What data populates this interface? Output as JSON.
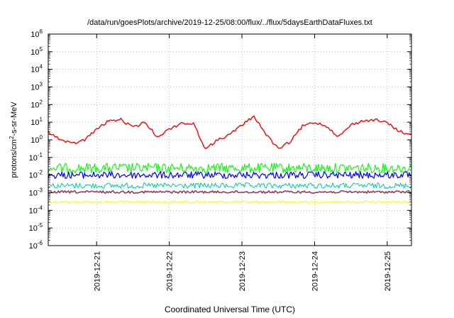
{
  "chart_data": {
    "type": "line",
    "title": "/data/run/goesPlots/archive/2019-12-25/08:00/flux/../flux/5daysEarthDataFluxes.txt",
    "xlabel": "Coordinated Universal Time (UTC)",
    "ylabel_parts": [
      "protons/cm",
      "2",
      "-s-sr-MeV"
    ],
    "y_scale": "log",
    "ylim": [
      1e-06,
      1000000.0
    ],
    "y_ticks": [
      {
        "base": "10",
        "exp": "-6",
        "value": 1e-06
      },
      {
        "base": "10",
        "exp": "-5",
        "value": 1e-05
      },
      {
        "base": "10",
        "exp": "-4",
        "value": 0.0001
      },
      {
        "base": "10",
        "exp": "-3",
        "value": 0.001
      },
      {
        "base": "10",
        "exp": "-2",
        "value": 0.01
      },
      {
        "base": "10",
        "exp": "-1",
        "value": 0.1
      },
      {
        "base": "10",
        "exp": "0",
        "value": 1
      },
      {
        "base": "10",
        "exp": "1",
        "value": 10
      },
      {
        "base": "10",
        "exp": "2",
        "value": 100
      },
      {
        "base": "10",
        "exp": "3",
        "value": 1000
      },
      {
        "base": "10",
        "exp": "4",
        "value": 10000
      },
      {
        "base": "10",
        "exp": "5",
        "value": 100000
      },
      {
        "base": "10",
        "exp": "6",
        "value": 1000000
      }
    ],
    "x_range": [
      "2019-12-20 08:00",
      "2019-12-25 08:00"
    ],
    "x_ticks": [
      "2019-12-21",
      "2019-12-22",
      "2019-12-23",
      "2019-12-24",
      "2019-12-25"
    ],
    "grid": true,
    "legend": "none",
    "series": [
      {
        "color": "#ff0000",
        "x": [
          "2019-12-20 08:00",
          "2019-12-20 12:00",
          "2019-12-20 16:00",
          "2019-12-20 20:00",
          "2019-12-21 00:00",
          "2019-12-21 04:00",
          "2019-12-21 08:00",
          "2019-12-21 12:00",
          "2019-12-21 16:00",
          "2019-12-21 20:00",
          "2019-12-22 00:00",
          "2019-12-22 04:00",
          "2019-12-22 08:00",
          "2019-12-22 12:00",
          "2019-12-22 16:00",
          "2019-12-22 20:00",
          "2019-12-23 00:00",
          "2019-12-23 04:00",
          "2019-12-23 08:00",
          "2019-12-23 12:00",
          "2019-12-23 16:00",
          "2019-12-23 20:00",
          "2019-12-24 00:00",
          "2019-12-24 04:00",
          "2019-12-24 08:00",
          "2019-12-24 12:00",
          "2019-12-24 16:00",
          "2019-12-24 20:00",
          "2019-12-25 00:00",
          "2019-12-25 04:00",
          "2019-12-25 08:00"
        ],
        "values": [
          3,
          1,
          0.6,
          1,
          4,
          12,
          14,
          5,
          10,
          1.5,
          4,
          9,
          8,
          0.3,
          1,
          2,
          7,
          22,
          2,
          0.3,
          0.8,
          6,
          10,
          6,
          1.5,
          7,
          12,
          14,
          9,
          3,
          2
        ]
      },
      {
        "color": "#00ff00",
        "x": [
          "2019-12-20 08:00",
          "2019-12-21 08:00",
          "2019-12-22 08:00",
          "2019-12-23 08:00",
          "2019-12-24 08:00",
          "2019-12-25 08:00"
        ],
        "values": [
          0.025,
          0.025,
          0.025,
          0.025,
          0.025,
          0.025
        ]
      },
      {
        "color": "#0000ff",
        "x": [
          "2019-12-20 08:00",
          "2019-12-21 08:00",
          "2019-12-22 08:00",
          "2019-12-23 08:00",
          "2019-12-24 08:00",
          "2019-12-25 08:00"
        ],
        "values": [
          0.01,
          0.01,
          0.01,
          0.01,
          0.01,
          0.01
        ]
      },
      {
        "color": "#00c8a0",
        "x": [
          "2019-12-20 08:00",
          "2019-12-21 08:00",
          "2019-12-22 08:00",
          "2019-12-23 08:00",
          "2019-12-24 08:00",
          "2019-12-25 08:00"
        ],
        "values": [
          0.0025,
          0.0025,
          0.0025,
          0.0025,
          0.0025,
          0.0025
        ]
      },
      {
        "color": "#904060",
        "x": [
          "2019-12-20 08:00",
          "2019-12-21 08:00",
          "2019-12-22 08:00",
          "2019-12-23 08:00",
          "2019-12-24 08:00",
          "2019-12-25 08:00"
        ],
        "values": [
          0.0011,
          0.0011,
          0.0011,
          0.0011,
          0.0011,
          0.0011
        ]
      },
      {
        "color": "#ffff00",
        "x": [
          "2019-12-20 08:00",
          "2019-12-21 08:00",
          "2019-12-22 08:00",
          "2019-12-23 08:00",
          "2019-12-24 08:00",
          "2019-12-25 08:00"
        ],
        "values": [
          0.0003,
          0.0003,
          0.0003,
          0.0003,
          0.0003,
          0.0003
        ]
      }
    ]
  }
}
